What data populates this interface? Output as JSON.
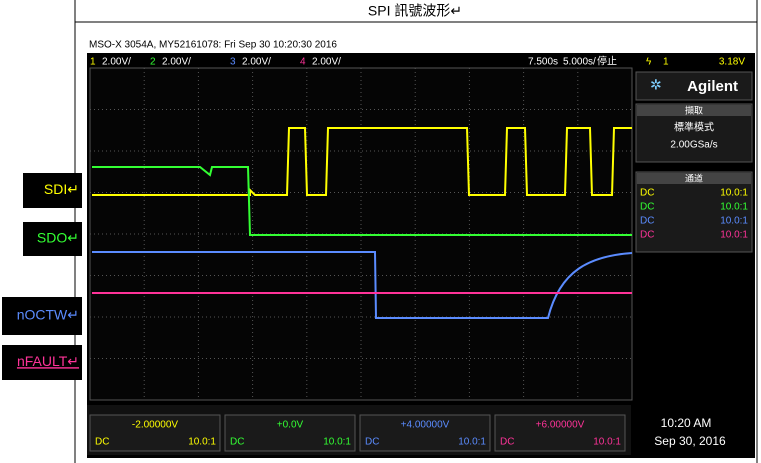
{
  "title": "SPI 訊號波形↵",
  "labels": [
    {
      "text": "SDI↵",
      "color": "#ffff00"
    },
    {
      "text": "SDO↵",
      "color": "#33ff33"
    },
    {
      "text": "nOCTW↵",
      "color": "#5b8cff"
    },
    {
      "text": "nFAULT↵",
      "color": "#ff3399"
    }
  ],
  "scope": {
    "header": "MSO-X 3054A, MY52161078: Fri Sep 30 10:20:30 2016",
    "channels": [
      {
        "num": "1",
        "scale": "2.00V/",
        "color": "#ffff00"
      },
      {
        "num": "2",
        "scale": "2.00V/",
        "color": "#33ff33"
      },
      {
        "num": "3",
        "scale": "2.00V/",
        "color": "#5b8cff"
      },
      {
        "num": "4",
        "scale": "2.00V/",
        "color": "#ff3399"
      }
    ],
    "delay": "7.500s",
    "timebase": "5.000s/",
    "status": "停止",
    "trigger": {
      "num": "1",
      "level": "3.18V"
    },
    "brand": "Agilent",
    "acq_title": "擷取",
    "acq_mode": "標準模式",
    "sample_rate": "2.00GSa/s",
    "chan_title": "通道",
    "coupling": [
      {
        "mode": "DC",
        "probe": "10.0:1"
      },
      {
        "mode": "DC",
        "probe": "10.0:1"
      },
      {
        "mode": "DC",
        "probe": "10.0:1"
      },
      {
        "mode": "DC",
        "probe": "10.0:1"
      }
    ],
    "offsets": [
      "-2.00000V",
      "+0.0V",
      "+4.00000V",
      "+6.00000V"
    ],
    "time": "10:20 AM",
    "date": "Sep 30, 2016"
  }
}
